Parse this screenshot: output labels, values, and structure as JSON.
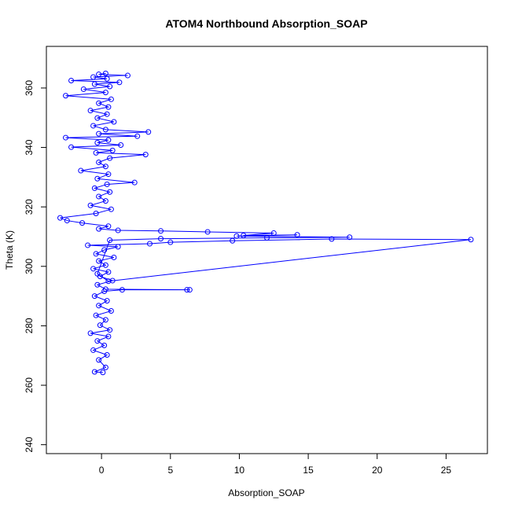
{
  "chart_data": {
    "type": "line",
    "title": "ATOM4 Northbound Absorption_SOAP",
    "xlabel": "Absorption_SOAP",
    "ylabel": "Theta (K)",
    "xlim": [
      -4,
      28
    ],
    "ylim": [
      237,
      374
    ],
    "xticks": [
      0,
      5,
      10,
      15,
      20,
      25
    ],
    "yticks": [
      240,
      260,
      280,
      300,
      320,
      340,
      360
    ],
    "grid": false,
    "legend": "none",
    "color": "#0000ff",
    "markers": "open-circle",
    "series": [
      {
        "points": [
          [
            0.1,
            264.3
          ],
          [
            -0.5,
            264.5
          ],
          [
            0.3,
            266.0
          ],
          [
            -0.2,
            268.5
          ],
          [
            0.4,
            270.2
          ],
          [
            -0.6,
            271.8
          ],
          [
            0.2,
            273.4
          ],
          [
            -0.3,
            274.9
          ],
          [
            0.5,
            276.4
          ],
          [
            -0.8,
            277.5
          ],
          [
            0.6,
            278.6
          ],
          [
            -0.1,
            280.2
          ],
          [
            0.3,
            282.0
          ],
          [
            -0.4,
            283.5
          ],
          [
            0.7,
            285.0
          ],
          [
            -0.2,
            286.8
          ],
          [
            0.4,
            288.4
          ],
          [
            -0.5,
            290.0
          ],
          [
            0.2,
            291.6
          ],
          [
            1.5,
            292.1
          ],
          [
            6.2,
            292.1
          ],
          [
            6.4,
            292.1
          ],
          [
            0.3,
            292.3
          ],
          [
            -0.3,
            293.8
          ],
          [
            0.8,
            295.2
          ],
          [
            -0.1,
            296.6
          ],
          [
            0.5,
            298.1
          ],
          [
            -0.6,
            299.2
          ],
          [
            0.3,
            300.4
          ],
          [
            -0.2,
            301.8
          ],
          [
            0.9,
            303.0
          ],
          [
            -0.4,
            304.2
          ],
          [
            0.2,
            305.5
          ],
          [
            1.2,
            306.6
          ],
          [
            -1.0,
            307.1
          ],
          [
            3.5,
            307.6
          ],
          [
            5.0,
            308.1
          ],
          [
            9.5,
            308.6
          ],
          [
            16.7,
            309.2
          ],
          [
            26.8,
            309.0
          ],
          [
            0.5,
            295.0
          ],
          [
            -0.3,
            297.5
          ],
          [
            0.6,
            308.8
          ],
          [
            4.3,
            309.3
          ],
          [
            12.0,
            309.6
          ],
          [
            18.0,
            309.8
          ],
          [
            9.8,
            310.2
          ],
          [
            14.2,
            310.6
          ],
          [
            10.3,
            310.4
          ],
          [
            12.5,
            311.2
          ],
          [
            7.7,
            311.6
          ],
          [
            4.3,
            311.9
          ],
          [
            1.2,
            312.1
          ],
          [
            -0.2,
            312.6
          ],
          [
            0.5,
            313.5
          ],
          [
            -1.4,
            314.6
          ],
          [
            -2.5,
            315.4
          ],
          [
            -3.0,
            316.3
          ],
          [
            -0.4,
            317.8
          ],
          [
            0.7,
            319.2
          ],
          [
            -0.8,
            320.5
          ],
          [
            0.3,
            322.0
          ],
          [
            -0.2,
            323.5
          ],
          [
            0.6,
            325.0
          ],
          [
            -0.5,
            326.3
          ],
          [
            0.4,
            327.6
          ],
          [
            2.4,
            328.2
          ],
          [
            -0.3,
            329.5
          ],
          [
            0.5,
            331.0
          ],
          [
            -1.5,
            332.2
          ],
          [
            0.3,
            333.6
          ],
          [
            -0.2,
            335.0
          ],
          [
            0.6,
            336.4
          ],
          [
            3.2,
            337.6
          ],
          [
            -0.4,
            338.2
          ],
          [
            0.8,
            339.0
          ],
          [
            -2.2,
            340.1
          ],
          [
            1.4,
            340.8
          ],
          [
            -0.3,
            341.6
          ],
          [
            0.5,
            342.5
          ],
          [
            -2.6,
            343.3
          ],
          [
            2.6,
            343.8
          ],
          [
            -0.2,
            344.6
          ],
          [
            3.4,
            345.2
          ],
          [
            0.3,
            346.0
          ],
          [
            -0.6,
            347.3
          ],
          [
            0.9,
            348.6
          ],
          [
            -0.3,
            349.9
          ],
          [
            0.4,
            351.2
          ],
          [
            -0.8,
            352.4
          ],
          [
            0.5,
            353.6
          ],
          [
            -0.2,
            354.9
          ],
          [
            0.7,
            356.2
          ],
          [
            -2.6,
            357.4
          ],
          [
            0.3,
            358.5
          ],
          [
            -1.3,
            359.6
          ],
          [
            0.6,
            360.5
          ],
          [
            -0.5,
            361.3
          ],
          [
            1.3,
            361.9
          ],
          [
            -2.2,
            362.5
          ],
          [
            0.4,
            363.1
          ],
          [
            -0.6,
            363.7
          ],
          [
            1.9,
            364.2
          ],
          [
            -0.2,
            364.6
          ],
          [
            0.3,
            364.9
          ]
        ]
      }
    ]
  }
}
